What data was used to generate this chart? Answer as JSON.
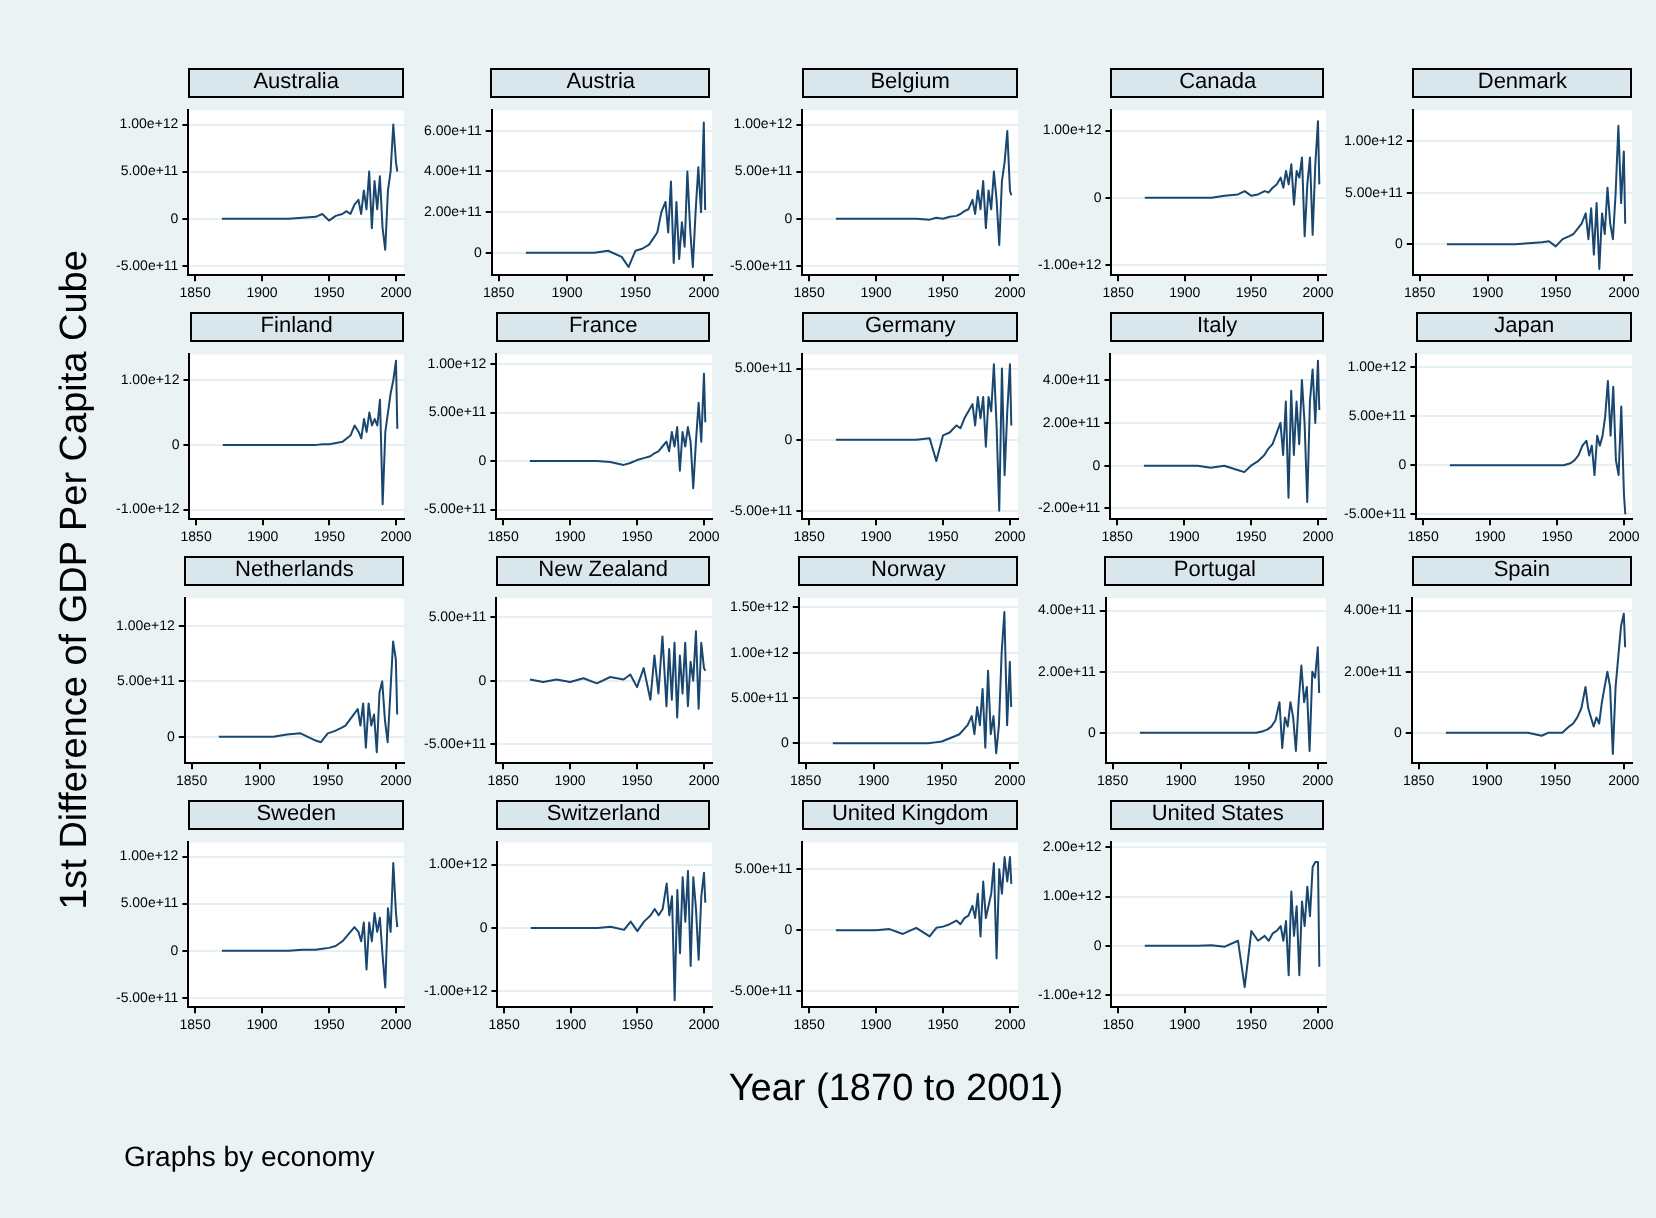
{
  "chart_data": [
    {
      "type": "line",
      "title": "Australia",
      "color": "#1a476f",
      "grid": "y",
      "marker": "none",
      "xlim": [
        1845,
        2006
      ],
      "xticks": [
        1850,
        1900,
        1950,
        2000
      ],
      "ylim": [
        -600000000000.0,
        1150000000000.0
      ],
      "yticks": [
        {
          "value": -500000000000.0,
          "label": "-5.00e+11"
        },
        {
          "value": 0,
          "label": "0"
        },
        {
          "value": 500000000000.0,
          "label": "5.00e+11"
        },
        {
          "value": 1000000000000.0,
          "label": "1.00e+12"
        }
      ],
      "x": [
        1870,
        1880,
        1890,
        1900,
        1910,
        1920,
        1930,
        1940,
        1945,
        1950,
        1955,
        1960,
        1963,
        1966,
        1969,
        1972,
        1974,
        1976,
        1978,
        1980,
        1982,
        1984,
        1986,
        1988,
        1990,
        1992,
        1994,
        1996,
        1998,
        2000,
        2001
      ],
      "values": [
        0,
        0,
        0,
        0,
        0,
        0,
        10000000000.0,
        20000000000.0,
        50000000000.0,
        -20000000000.0,
        30000000000.0,
        50000000000.0,
        80000000000.0,
        50000000000.0,
        150000000000.0,
        200000000000.0,
        50000000000.0,
        300000000000.0,
        100000000000.0,
        500000000000.0,
        -100000000000.0,
        400000000000.0,
        100000000000.0,
        450000000000.0,
        -100000000000.0,
        -330000000000.0,
        300000000000.0,
        500000000000.0,
        1000000000000.0,
        600000000000.0,
        500000000000.0
      ]
    },
    {
      "type": "line",
      "title": "Austria",
      "color": "#1a476f",
      "grid": "y",
      "marker": "none",
      "xlim": [
        1845,
        2006
      ],
      "xticks": [
        1850,
        1900,
        1950,
        2000
      ],
      "ylim": [
        -110000000000.0,
        700000000000.0
      ],
      "yticks": [
        {
          "value": 0,
          "label": "0"
        },
        {
          "value": 200000000000.0,
          "label": "2.00e+11"
        },
        {
          "value": 400000000000.0,
          "label": "4.00e+11"
        },
        {
          "value": 600000000000.0,
          "label": "6.00e+11"
        }
      ],
      "x": [
        1870,
        1880,
        1890,
        1900,
        1910,
        1920,
        1930,
        1940,
        1945,
        1950,
        1955,
        1960,
        1963,
        1966,
        1969,
        1972,
        1974,
        1976,
        1978,
        1980,
        1982,
        1984,
        1986,
        1988,
        1990,
        1992,
        1994,
        1996,
        1998,
        2000,
        2001
      ],
      "values": [
        0,
        0,
        0,
        0,
        0,
        0,
        10000000000.0,
        -20000000000.0,
        -70000000000.0,
        10000000000.0,
        20000000000.0,
        40000000000.0,
        70000000000.0,
        100000000000.0,
        200000000000.0,
        250000000000.0,
        100000000000.0,
        350000000000.0,
        -50000000000.0,
        250000000000.0,
        -30000000000.0,
        150000000000.0,
        30000000000.0,
        400000000000.0,
        120000000000.0,
        -70000000000.0,
        200000000000.0,
        420000000000.0,
        200000000000.0,
        640000000000.0,
        210000000000.0
      ]
    },
    {
      "type": "line",
      "title": "Belgium",
      "color": "#1a476f",
      "grid": "y",
      "marker": "none",
      "xlim": [
        1845,
        2006
      ],
      "xticks": [
        1850,
        1900,
        1950,
        2000
      ],
      "ylim": [
        -600000000000.0,
        1150000000000.0
      ],
      "yticks": [
        {
          "value": -500000000000.0,
          "label": "-5.00e+11"
        },
        {
          "value": 0,
          "label": "0"
        },
        {
          "value": 500000000000.0,
          "label": "5.00e+11"
        },
        {
          "value": 1000000000000.0,
          "label": "1.00e+12"
        }
      ],
      "x": [
        1870,
        1880,
        1890,
        1900,
        1910,
        1920,
        1930,
        1940,
        1945,
        1950,
        1955,
        1960,
        1963,
        1966,
        1969,
        1972,
        1974,
        1976,
        1978,
        1980,
        1982,
        1984,
        1986,
        1988,
        1990,
        1992,
        1994,
        1996,
        1998,
        2000,
        2001
      ],
      "values": [
        0,
        0,
        0,
        0,
        0,
        0,
        0,
        -10000000000.0,
        10000000000.0,
        0,
        20000000000.0,
        30000000000.0,
        50000000000.0,
        80000000000.0,
        100000000000.0,
        200000000000.0,
        50000000000.0,
        300000000000.0,
        100000000000.0,
        400000000000.0,
        -100000000000.0,
        300000000000.0,
        100000000000.0,
        500000000000.0,
        200000000000.0,
        -280000000000.0,
        400000000000.0,
        600000000000.0,
        930000000000.0,
        300000000000.0,
        250000000000.0
      ]
    },
    {
      "type": "line",
      "title": "Canada",
      "color": "#1a476f",
      "grid": "y",
      "marker": "none",
      "xlim": [
        1845,
        2006
      ],
      "xticks": [
        1850,
        1900,
        1950,
        2000
      ],
      "ylim": [
        -1150000000000.0,
        1300000000000.0
      ],
      "yticks": [
        {
          "value": -1000000000000.0,
          "label": "-1.00e+12"
        },
        {
          "value": 0,
          "label": "0"
        },
        {
          "value": 1000000000000.0,
          "label": "1.00e+12"
        }
      ],
      "x": [
        1870,
        1880,
        1890,
        1900,
        1910,
        1920,
        1930,
        1940,
        1945,
        1950,
        1955,
        1960,
        1963,
        1966,
        1969,
        1972,
        1974,
        1976,
        1978,
        1980,
        1982,
        1984,
        1986,
        1988,
        1990,
        1992,
        1994,
        1996,
        1998,
        2000,
        2001
      ],
      "values": [
        0,
        0,
        0,
        0,
        0,
        0,
        30000000000.0,
        50000000000.0,
        100000000000.0,
        30000000000.0,
        50000000000.0,
        100000000000.0,
        80000000000.0,
        150000000000.0,
        200000000000.0,
        300000000000.0,
        150000000000.0,
        400000000000.0,
        200000000000.0,
        500000000000.0,
        -100000000000.0,
        400000000000.0,
        300000000000.0,
        600000000000.0,
        -570000000000.0,
        200000000000.0,
        600000000000.0,
        -550000000000.0,
        500000000000.0,
        1140000000000.0,
        200000000000.0
      ]
    },
    {
      "type": "line",
      "title": "Denmark",
      "color": "#1a476f",
      "grid": "y",
      "marker": "none",
      "xlim": [
        1845,
        2006
      ],
      "xticks": [
        1850,
        1900,
        1950,
        2000
      ],
      "ylim": [
        -300000000000.0,
        1300000000000.0
      ],
      "yticks": [
        {
          "value": 0,
          "label": "0"
        },
        {
          "value": 500000000000.0,
          "label": "5.00e+11"
        },
        {
          "value": 1000000000000.0,
          "label": "1.00e+12"
        }
      ],
      "x": [
        1870,
        1880,
        1890,
        1900,
        1910,
        1920,
        1930,
        1940,
        1945,
        1950,
        1955,
        1960,
        1963,
        1966,
        1969,
        1972,
        1974,
        1976,
        1978,
        1980,
        1982,
        1984,
        1986,
        1988,
        1990,
        1992,
        1994,
        1996,
        1998,
        2000,
        2001
      ],
      "values": [
        0,
        0,
        0,
        0,
        0,
        0,
        10000000000.0,
        20000000000.0,
        30000000000.0,
        -20000000000.0,
        50000000000.0,
        80000000000.0,
        100000000000.0,
        150000000000.0,
        200000000000.0,
        300000000000.0,
        50000000000.0,
        350000000000.0,
        -100000000000.0,
        400000000000.0,
        -240000000000.0,
        300000000000.0,
        100000000000.0,
        550000000000.0,
        200000000000.0,
        50000000000.0,
        500000000000.0,
        1150000000000.0,
        400000000000.0,
        900000000000.0,
        200000000000.0
      ]
    },
    {
      "type": "line",
      "title": "Finland",
      "color": "#1a476f",
      "grid": "y",
      "marker": "none",
      "xlim": [
        1845,
        2006
      ],
      "xticks": [
        1850,
        1900,
        1950,
        2000
      ],
      "ylim": [
        -1150000000000.0,
        1400000000000.0
      ],
      "yticks": [
        {
          "value": -1000000000000.0,
          "label": "-1.00e+12"
        },
        {
          "value": 0,
          "label": "0"
        },
        {
          "value": 1000000000000.0,
          "label": "1.00e+12"
        }
      ],
      "x": [
        1870,
        1880,
        1890,
        1900,
        1910,
        1920,
        1930,
        1940,
        1945,
        1950,
        1955,
        1960,
        1963,
        1966,
        1969,
        1972,
        1974,
        1976,
        1978,
        1980,
        1982,
        1984,
        1986,
        1988,
        1990,
        1992,
        1994,
        1996,
        1998,
        2000,
        2001
      ],
      "values": [
        0,
        0,
        0,
        0,
        0,
        0,
        0,
        0,
        10000000000.0,
        10000000000.0,
        30000000000.0,
        50000000000.0,
        100000000000.0,
        150000000000.0,
        300000000000.0,
        200000000000.0,
        100000000000.0,
        400000000000.0,
        200000000000.0,
        500000000000.0,
        300000000000.0,
        400000000000.0,
        300000000000.0,
        700000000000.0,
        -920000000000.0,
        200000000000.0,
        500000000000.0,
        800000000000.0,
        1000000000000.0,
        1300000000000.0,
        250000000000.0
      ]
    },
    {
      "type": "line",
      "title": "France",
      "color": "#1a476f",
      "grid": "y",
      "marker": "none",
      "xlim": [
        1845,
        2006
      ],
      "xticks": [
        1850,
        1900,
        1950,
        2000
      ],
      "ylim": [
        -600000000000.0,
        1100000000000.0
      ],
      "yticks": [
        {
          "value": -500000000000.0,
          "label": "-5.00e+11"
        },
        {
          "value": 0,
          "label": "0"
        },
        {
          "value": 500000000000.0,
          "label": "5.00e+11"
        },
        {
          "value": 1000000000000.0,
          "label": "1.00e+12"
        }
      ],
      "x": [
        1870,
        1880,
        1890,
        1900,
        1910,
        1920,
        1930,
        1940,
        1945,
        1950,
        1955,
        1960,
        1963,
        1966,
        1969,
        1972,
        1974,
        1976,
        1978,
        1980,
        1982,
        1984,
        1986,
        1988,
        1990,
        1992,
        1994,
        1996,
        1998,
        2000,
        2001
      ],
      "values": [
        0,
        0,
        0,
        0,
        0,
        0,
        -10000000000.0,
        -40000000000.0,
        -20000000000.0,
        10000000000.0,
        30000000000.0,
        50000000000.0,
        80000000000.0,
        100000000000.0,
        150000000000.0,
        200000000000.0,
        100000000000.0,
        300000000000.0,
        150000000000.0,
        350000000000.0,
        -100000000000.0,
        300000000000.0,
        150000000000.0,
        350000000000.0,
        200000000000.0,
        -280000000000.0,
        200000000000.0,
        600000000000.0,
        200000000000.0,
        900000000000.0,
        400000000000.0
      ]
    },
    {
      "type": "line",
      "title": "Germany",
      "color": "#1a476f",
      "grid": "y",
      "marker": "none",
      "xlim": [
        1845,
        2006
      ],
      "xticks": [
        1850,
        1900,
        1950,
        2000
      ],
      "ylim": [
        -560000000000.0,
        600000000000.0
      ],
      "yticks": [
        {
          "value": -500000000000.0,
          "label": "-5.00e+11"
        },
        {
          "value": 0,
          "label": "0"
        },
        {
          "value": 500000000000.0,
          "label": "5.00e+11"
        }
      ],
      "x": [
        1870,
        1880,
        1890,
        1900,
        1910,
        1920,
        1930,
        1940,
        1945,
        1950,
        1955,
        1960,
        1963,
        1966,
        1969,
        1972,
        1974,
        1976,
        1978,
        1980,
        1982,
        1984,
        1986,
        1988,
        1990,
        1992,
        1994,
        1996,
        1998,
        2000,
        2001
      ],
      "values": [
        0,
        0,
        0,
        0,
        0,
        0,
        0,
        10000000000.0,
        -150000000000.0,
        30000000000.0,
        50000000000.0,
        100000000000.0,
        80000000000.0,
        150000000000.0,
        200000000000.0,
        250000000000.0,
        100000000000.0,
        300000000000.0,
        150000000000.0,
        300000000000.0,
        -50000000000.0,
        300000000000.0,
        200000000000.0,
        530000000000.0,
        100000000000.0,
        -500000000000.0,
        500000000000.0,
        -250000000000.0,
        200000000000.0,
        530000000000.0,
        100000000000.0
      ]
    },
    {
      "type": "line",
      "title": "Italy",
      "color": "#1a476f",
      "grid": "y",
      "marker": "none",
      "xlim": [
        1845,
        2006
      ],
      "xticks": [
        1850,
        1900,
        1950,
        2000
      ],
      "ylim": [
        -250000000000.0,
        520000000000.0
      ],
      "yticks": [
        {
          "value": -200000000000.0,
          "label": "-2.00e+11"
        },
        {
          "value": 0,
          "label": "0"
        },
        {
          "value": 200000000000.0,
          "label": "2.00e+11"
        },
        {
          "value": 400000000000.0,
          "label": "4.00e+11"
        }
      ],
      "x": [
        1870,
        1880,
        1890,
        1900,
        1910,
        1920,
        1930,
        1940,
        1945,
        1950,
        1955,
        1960,
        1963,
        1966,
        1969,
        1972,
        1974,
        1976,
        1978,
        1980,
        1982,
        1984,
        1986,
        1988,
        1990,
        1992,
        1994,
        1996,
        1998,
        2000,
        2001
      ],
      "values": [
        0,
        0,
        0,
        0,
        0,
        -10000000000.0,
        0,
        -20000000000.0,
        -30000000000.0,
        0,
        20000000000.0,
        50000000000.0,
        80000000000.0,
        100000000000.0,
        150000000000.0,
        200000000000.0,
        50000000000.0,
        300000000000.0,
        -150000000000.0,
        350000000000.0,
        50000000000.0,
        300000000000.0,
        100000000000.0,
        400000000000.0,
        200000000000.0,
        -170000000000.0,
        300000000000.0,
        450000000000.0,
        200000000000.0,
        490000000000.0,
        260000000000.0
      ]
    },
    {
      "type": "line",
      "title": "Japan",
      "color": "#1a476f",
      "grid": "y",
      "marker": "none",
      "xlim": [
        1845,
        2006
      ],
      "xticks": [
        1850,
        1900,
        1950,
        2000
      ],
      "ylim": [
        -550000000000.0,
        1130000000000.0
      ],
      "yticks": [
        {
          "value": -500000000000.0,
          "label": "-5.00e+11"
        },
        {
          "value": 0,
          "label": "0"
        },
        {
          "value": 500000000000.0,
          "label": "5.00e+11"
        },
        {
          "value": 1000000000000.0,
          "label": "1.00e+12"
        }
      ],
      "x": [
        1870,
        1880,
        1890,
        1900,
        1910,
        1920,
        1930,
        1940,
        1945,
        1950,
        1955,
        1960,
        1963,
        1966,
        1969,
        1972,
        1974,
        1976,
        1978,
        1980,
        1982,
        1984,
        1986,
        1988,
        1990,
        1992,
        1994,
        1996,
        1998,
        2000,
        2001
      ],
      "values": [
        0,
        0,
        0,
        0,
        0,
        0,
        0,
        0,
        0,
        0,
        0,
        20000000000.0,
        50000000000.0,
        100000000000.0,
        200000000000.0,
        250000000000.0,
        100000000000.0,
        200000000000.0,
        -100000000000.0,
        300000000000.0,
        200000000000.0,
        300000000000.0,
        500000000000.0,
        860000000000.0,
        300000000000.0,
        800000000000.0,
        50000000000.0,
        -100000000000.0,
        600000000000.0,
        -300000000000.0,
        -500000000000.0
      ]
    },
    {
      "type": "line",
      "title": "Netherlands",
      "color": "#1a476f",
      "grid": "y",
      "marker": "none",
      "xlim": [
        1845,
        2006
      ],
      "xticks": [
        1850,
        1900,
        1950,
        2000
      ],
      "ylim": [
        -240000000000.0,
        1250000000000.0
      ],
      "yticks": [
        {
          "value": 0,
          "label": "0"
        },
        {
          "value": 500000000000.0,
          "label": "5.00e+11"
        },
        {
          "value": 1000000000000.0,
          "label": "1.00e+12"
        }
      ],
      "x": [
        1870,
        1880,
        1890,
        1900,
        1910,
        1920,
        1930,
        1940,
        1945,
        1950,
        1955,
        1960,
        1963,
        1966,
        1969,
        1972,
        1974,
        1976,
        1978,
        1980,
        1982,
        1984,
        1986,
        1988,
        1990,
        1992,
        1994,
        1996,
        1998,
        2000,
        2001
      ],
      "values": [
        0,
        0,
        0,
        0,
        0,
        20000000000.0,
        30000000000.0,
        -30000000000.0,
        -50000000000.0,
        30000000000.0,
        50000000000.0,
        80000000000.0,
        100000000000.0,
        150000000000.0,
        200000000000.0,
        250000000000.0,
        100000000000.0,
        300000000000.0,
        -100000000000.0,
        300000000000.0,
        100000000000.0,
        200000000000.0,
        -140000000000.0,
        400000000000.0,
        500000000000.0,
        150000000000.0,
        -50000000000.0,
        400000000000.0,
        860000000000.0,
        700000000000.0,
        200000000000.0
      ]
    },
    {
      "type": "line",
      "title": "New Zealand",
      "color": "#1a476f",
      "grid": "y",
      "marker": "none",
      "xlim": [
        1845,
        2006
      ],
      "xticks": [
        1850,
        1900,
        1950,
        2000
      ],
      "ylim": [
        -650000000000.0,
        650000000000.0
      ],
      "yticks": [
        {
          "value": -500000000000.0,
          "label": "-5.00e+11"
        },
        {
          "value": 0,
          "label": "0"
        },
        {
          "value": 500000000000.0,
          "label": "5.00e+11"
        }
      ],
      "x": [
        1870,
        1880,
        1890,
        1900,
        1910,
        1920,
        1930,
        1940,
        1945,
        1950,
        1955,
        1960,
        1963,
        1966,
        1969,
        1972,
        1974,
        1976,
        1978,
        1980,
        1982,
        1984,
        1986,
        1988,
        1990,
        1992,
        1994,
        1996,
        1998,
        2000,
        2001
      ],
      "values": [
        10000000000.0,
        -10000000000.0,
        10000000000.0,
        -10000000000.0,
        20000000000.0,
        -20000000000.0,
        30000000000.0,
        10000000000.0,
        50000000000.0,
        -50000000000.0,
        100000000000.0,
        -150000000000.0,
        200000000000.0,
        -100000000000.0,
        350000000000.0,
        -200000000000.0,
        250000000000.0,
        -150000000000.0,
        300000000000.0,
        -290000000000.0,
        200000000000.0,
        -100000000000.0,
        300000000000.0,
        -200000000000.0,
        150000000000.0,
        0,
        390000000000.0,
        -220000000000.0,
        300000000000.0,
        100000000000.0,
        80000000000.0
      ]
    },
    {
      "type": "line",
      "title": "Norway",
      "color": "#1a476f",
      "grid": "y",
      "marker": "none",
      "xlim": [
        1845,
        2006
      ],
      "xticks": [
        1850,
        1900,
        1950,
        2000
      ],
      "ylim": [
        -220000000000.0,
        1600000000000.0
      ],
      "yticks": [
        {
          "value": 0,
          "label": "0"
        },
        {
          "value": 500000000000.0,
          "label": "5.00e+11"
        },
        {
          "value": 1000000000000.0,
          "label": "1.00e+12"
        },
        {
          "value": 1500000000000.0,
          "label": "1.50e+12"
        }
      ],
      "x": [
        1870,
        1880,
        1890,
        1900,
        1910,
        1920,
        1930,
        1940,
        1945,
        1950,
        1955,
        1960,
        1963,
        1966,
        1969,
        1972,
        1974,
        1976,
        1978,
        1980,
        1982,
        1984,
        1986,
        1988,
        1990,
        1992,
        1994,
        1996,
        1998,
        2000,
        2001
      ],
      "values": [
        0,
        0,
        0,
        0,
        0,
        0,
        0,
        0,
        10000000000.0,
        20000000000.0,
        50000000000.0,
        80000000000.0,
        100000000000.0,
        150000000000.0,
        200000000000.0,
        300000000000.0,
        100000000000.0,
        400000000000.0,
        200000000000.0,
        600000000000.0,
        -50000000000.0,
        800000000000.0,
        100000000000.0,
        300000000000.0,
        -110000000000.0,
        200000000000.0,
        1000000000000.0,
        1450000000000.0,
        200000000000.0,
        900000000000.0,
        400000000000.0
      ]
    },
    {
      "type": "line",
      "title": "Portugal",
      "color": "#1a476f",
      "grid": "y",
      "marker": "none",
      "xlim": [
        1845,
        2006
      ],
      "xticks": [
        1850,
        1900,
        1950,
        2000
      ],
      "ylim": [
        -100000000000.0,
        440000000000.0
      ],
      "yticks": [
        {
          "value": 0,
          "label": "0"
        },
        {
          "value": 200000000000.0,
          "label": "2.00e+11"
        },
        {
          "value": 400000000000.0,
          "label": "4.00e+11"
        }
      ],
      "x": [
        1870,
        1880,
        1890,
        1900,
        1910,
        1920,
        1930,
        1940,
        1945,
        1950,
        1955,
        1960,
        1963,
        1966,
        1969,
        1972,
        1974,
        1976,
        1978,
        1980,
        1982,
        1984,
        1986,
        1988,
        1990,
        1992,
        1994,
        1996,
        1998,
        2000,
        2001
      ],
      "values": [
        0,
        0,
        0,
        0,
        0,
        0,
        0,
        0,
        0,
        0,
        0,
        5000000000.0,
        10000000000.0,
        20000000000.0,
        40000000000.0,
        100000000000.0,
        -50000000000.0,
        50000000000.0,
        20000000000.0,
        100000000000.0,
        50000000000.0,
        -60000000000.0,
        100000000000.0,
        220000000000.0,
        100000000000.0,
        150000000000.0,
        -60000000000.0,
        200000000000.0,
        180000000000.0,
        280000000000.0,
        130000000000.0
      ]
    },
    {
      "type": "line",
      "title": "Spain",
      "color": "#1a476f",
      "grid": "y",
      "marker": "none",
      "xlim": [
        1845,
        2006
      ],
      "xticks": [
        1850,
        1900,
        1950,
        2000
      ],
      "ylim": [
        -100000000000.0,
        440000000000.0
      ],
      "yticks": [
        {
          "value": 0,
          "label": "0"
        },
        {
          "value": 200000000000.0,
          "label": "2.00e+11"
        },
        {
          "value": 400000000000.0,
          "label": "4.00e+11"
        }
      ],
      "x": [
        1870,
        1880,
        1890,
        1900,
        1910,
        1920,
        1930,
        1940,
        1945,
        1950,
        1955,
        1960,
        1963,
        1966,
        1969,
        1972,
        1974,
        1976,
        1978,
        1980,
        1982,
        1984,
        1986,
        1988,
        1990,
        1992,
        1994,
        1996,
        1998,
        2000,
        2001
      ],
      "values": [
        0,
        0,
        0,
        0,
        0,
        0,
        0,
        -10000000000.0,
        0,
        0,
        0,
        20000000000.0,
        30000000000.0,
        50000000000.0,
        80000000000.0,
        150000000000.0,
        80000000000.0,
        50000000000.0,
        20000000000.0,
        50000000000.0,
        30000000000.0,
        100000000000.0,
        150000000000.0,
        200000000000.0,
        150000000000.0,
        -70000000000.0,
        150000000000.0,
        250000000000.0,
        350000000000.0,
        390000000000.0,
        280000000000.0
      ]
    },
    {
      "type": "line",
      "title": "Sweden",
      "color": "#1a476f",
      "grid": "y",
      "marker": "none",
      "xlim": [
        1845,
        2006
      ],
      "xticks": [
        1850,
        1900,
        1950,
        2000
      ],
      "ylim": [
        -600000000000.0,
        1150000000000.0
      ],
      "yticks": [
        {
          "value": -500000000000.0,
          "label": "-5.00e+11"
        },
        {
          "value": 0,
          "label": "0"
        },
        {
          "value": 500000000000.0,
          "label": "5.00e+11"
        },
        {
          "value": 1000000000000.0,
          "label": "1.00e+12"
        }
      ],
      "x": [
        1870,
        1880,
        1890,
        1900,
        1910,
        1920,
        1930,
        1940,
        1945,
        1950,
        1955,
        1960,
        1963,
        1966,
        1969,
        1972,
        1974,
        1976,
        1978,
        1980,
        1982,
        1984,
        1986,
        1988,
        1990,
        1992,
        1994,
        1996,
        1998,
        2000,
        2001
      ],
      "values": [
        0,
        0,
        0,
        0,
        0,
        0,
        10000000000.0,
        10000000000.0,
        20000000000.0,
        30000000000.0,
        50000000000.0,
        100000000000.0,
        150000000000.0,
        200000000000.0,
        250000000000.0,
        200000000000.0,
        100000000000.0,
        300000000000.0,
        -200000000000.0,
        300000000000.0,
        100000000000.0,
        400000000000.0,
        200000000000.0,
        350000000000.0,
        -50000000000.0,
        -390000000000.0,
        450000000000.0,
        200000000000.0,
        930000000000.0,
        400000000000.0,
        250000000000.0
      ]
    },
    {
      "type": "line",
      "title": "Switzerland",
      "color": "#1a476f",
      "grid": "y",
      "marker": "none",
      "xlim": [
        1845,
        2006
      ],
      "xticks": [
        1850,
        1900,
        1950,
        2000
      ],
      "ylim": [
        -1250000000000.0,
        1350000000000.0
      ],
      "yticks": [
        {
          "value": -1000000000000.0,
          "label": "-1.00e+12"
        },
        {
          "value": 0,
          "label": "0"
        },
        {
          "value": 1000000000000.0,
          "label": "1.00e+12"
        }
      ],
      "x": [
        1870,
        1880,
        1890,
        1900,
        1910,
        1920,
        1930,
        1940,
        1945,
        1950,
        1955,
        1960,
        1963,
        1966,
        1969,
        1972,
        1974,
        1976,
        1978,
        1980,
        1982,
        1984,
        1986,
        1988,
        1990,
        1992,
        1994,
        1996,
        1998,
        2000,
        2001
      ],
      "values": [
        0,
        0,
        0,
        0,
        0,
        0,
        20000000000.0,
        -30000000000.0,
        100000000000.0,
        -50000000000.0,
        100000000000.0,
        200000000000.0,
        300000000000.0,
        200000000000.0,
        300000000000.0,
        700000000000.0,
        200000000000.0,
        500000000000.0,
        -1140000000000.0,
        600000000000.0,
        -400000000000.0,
        800000000000.0,
        100000000000.0,
        900000000000.0,
        -600000000000.0,
        800000000000.0,
        300000000000.0,
        -500000000000.0,
        500000000000.0,
        870000000000.0,
        400000000000.0
      ]
    },
    {
      "type": "line",
      "title": "United Kingdom",
      "color": "#1a476f",
      "grid": "y",
      "marker": "none",
      "xlim": [
        1845,
        2006
      ],
      "xticks": [
        1850,
        1900,
        1950,
        2000
      ],
      "ylim": [
        -630000000000.0,
        720000000000.0
      ],
      "yticks": [
        {
          "value": -500000000000.0,
          "label": "-5.00e+11"
        },
        {
          "value": 0,
          "label": "0"
        },
        {
          "value": 500000000000.0,
          "label": "5.00e+11"
        }
      ],
      "x": [
        1870,
        1880,
        1890,
        1900,
        1910,
        1920,
        1930,
        1940,
        1945,
        1950,
        1955,
        1960,
        1963,
        1966,
        1969,
        1972,
        1974,
        1976,
        1978,
        1980,
        1982,
        1984,
        1986,
        1988,
        1990,
        1992,
        1994,
        1996,
        1998,
        2000,
        2001
      ],
      "values": [
        0,
        0,
        0,
        0,
        10000000000.0,
        -30000000000.0,
        20000000000.0,
        -50000000000.0,
        20000000000.0,
        30000000000.0,
        50000000000.0,
        80000000000.0,
        50000000000.0,
        100000000000.0,
        120000000000.0,
        200000000000.0,
        100000000000.0,
        300000000000.0,
        -50000000000.0,
        400000000000.0,
        100000000000.0,
        200000000000.0,
        300000000000.0,
        550000000000.0,
        -230000000000.0,
        500000000000.0,
        300000000000.0,
        600000000000.0,
        400000000000.0,
        600000000000.0,
        380000000000.0
      ]
    },
    {
      "type": "line",
      "title": "United States",
      "color": "#1a476f",
      "grid": "y",
      "marker": "none",
      "xlim": [
        1845,
        2006
      ],
      "xticks": [
        1850,
        1900,
        1950,
        2000
      ],
      "ylim": [
        -1250000000000.0,
        2100000000000.0
      ],
      "yticks": [
        {
          "value": -1000000000000.0,
          "label": "-1.00e+12"
        },
        {
          "value": 0,
          "label": "0"
        },
        {
          "value": 1000000000000.0,
          "label": "1.00e+12"
        },
        {
          "value": 2000000000000.0,
          "label": "2.00e+12"
        }
      ],
      "x": [
        1870,
        1880,
        1890,
        1900,
        1910,
        1920,
        1930,
        1940,
        1945,
        1950,
        1955,
        1960,
        1963,
        1966,
        1969,
        1972,
        1974,
        1976,
        1978,
        1980,
        1982,
        1984,
        1986,
        1988,
        1990,
        1992,
        1994,
        1996,
        1998,
        2000,
        2001
      ],
      "values": [
        0,
        0,
        0,
        0,
        0,
        10000000000.0,
        -20000000000.0,
        100000000000.0,
        -840000000000.0,
        300000000000.0,
        100000000000.0,
        200000000000.0,
        100000000000.0,
        250000000000.0,
        300000000000.0,
        400000000000.0,
        100000000000.0,
        500000000000.0,
        -600000000000.0,
        1100000000000.0,
        200000000000.0,
        800000000000.0,
        -600000000000.0,
        900000000000.0,
        400000000000.0,
        1200000000000.0,
        600000000000.0,
        1600000000000.0,
        1700000000000.0,
        1700000000000.0,
        -430000000000.0
      ]
    },
    {
      "type": "other",
      "xlabel": "Year (1870 to 2001)",
      "ylabel": "1st Difference of GDP Per Capita Cube",
      "annotations": [
        "Graphs by economy"
      ]
    }
  ]
}
